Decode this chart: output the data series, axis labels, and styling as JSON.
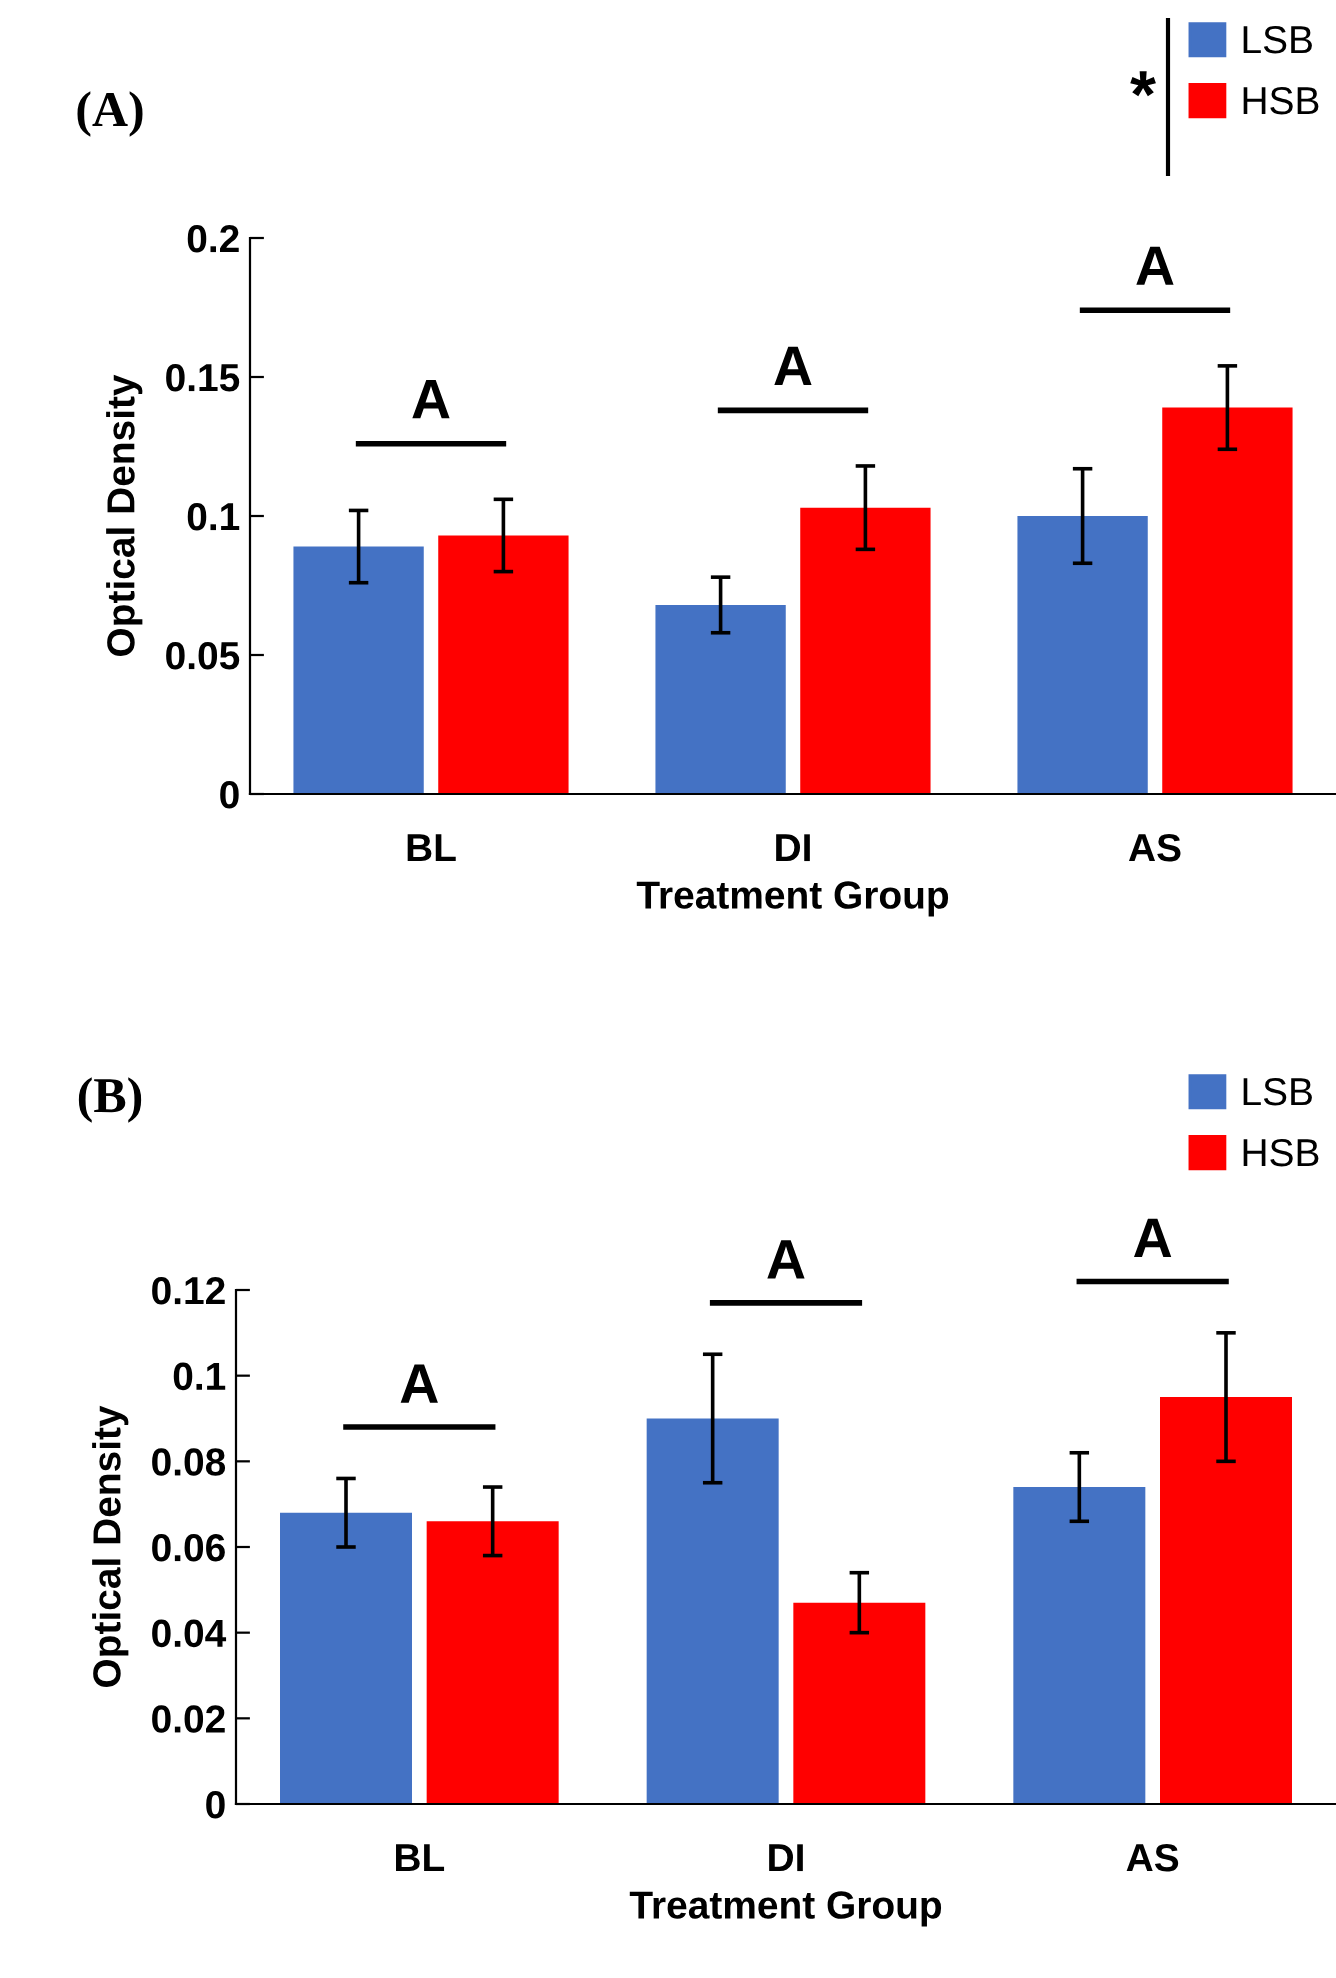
{
  "chart_data": [
    {
      "type": "bar",
      "title": "(A)",
      "xlabel": "Treatment Group",
      "ylabel": "Optical Density",
      "categories": [
        "BL",
        "DI",
        "AS"
      ],
      "series": [
        {
          "name": "LSB",
          "color": "#4472c4",
          "values": [
            0.089,
            0.068,
            0.1
          ],
          "errors": [
            0.013,
            0.01,
            0.017
          ]
        },
        {
          "name": "HSB",
          "color": "#ff0000",
          "values": [
            0.093,
            0.103,
            0.139
          ],
          "errors": [
            0.013,
            0.015,
            0.015
          ]
        }
      ],
      "ylim": [
        0,
        0.2
      ],
      "yticks": [
        0,
        0.05,
        0.1,
        0.15,
        0.2
      ],
      "grid": false,
      "legend": "top right",
      "annotations": [
        "A",
        "A",
        "A",
        "*"
      ]
    },
    {
      "type": "bar",
      "title": "(B)",
      "xlabel": "Treatment Group",
      "ylabel": "Optical Density",
      "categories": [
        "BL",
        "DI",
        "AS"
      ],
      "series": [
        {
          "name": "LSB",
          "color": "#4472c4",
          "values": [
            0.068,
            0.09,
            0.074
          ],
          "errors": [
            0.008,
            0.015,
            0.008
          ]
        },
        {
          "name": "HSB",
          "color": "#ff0000",
          "values": [
            0.066,
            0.047,
            0.095
          ],
          "errors": [
            0.008,
            0.007,
            0.015
          ]
        }
      ],
      "ylim": [
        0,
        0.12
      ],
      "yticks": [
        0,
        0.02,
        0.04,
        0.06,
        0.08,
        0.1,
        0.12
      ],
      "grid": false,
      "legend": "top right",
      "annotations": [
        "A",
        "A",
        "A"
      ]
    }
  ]
}
